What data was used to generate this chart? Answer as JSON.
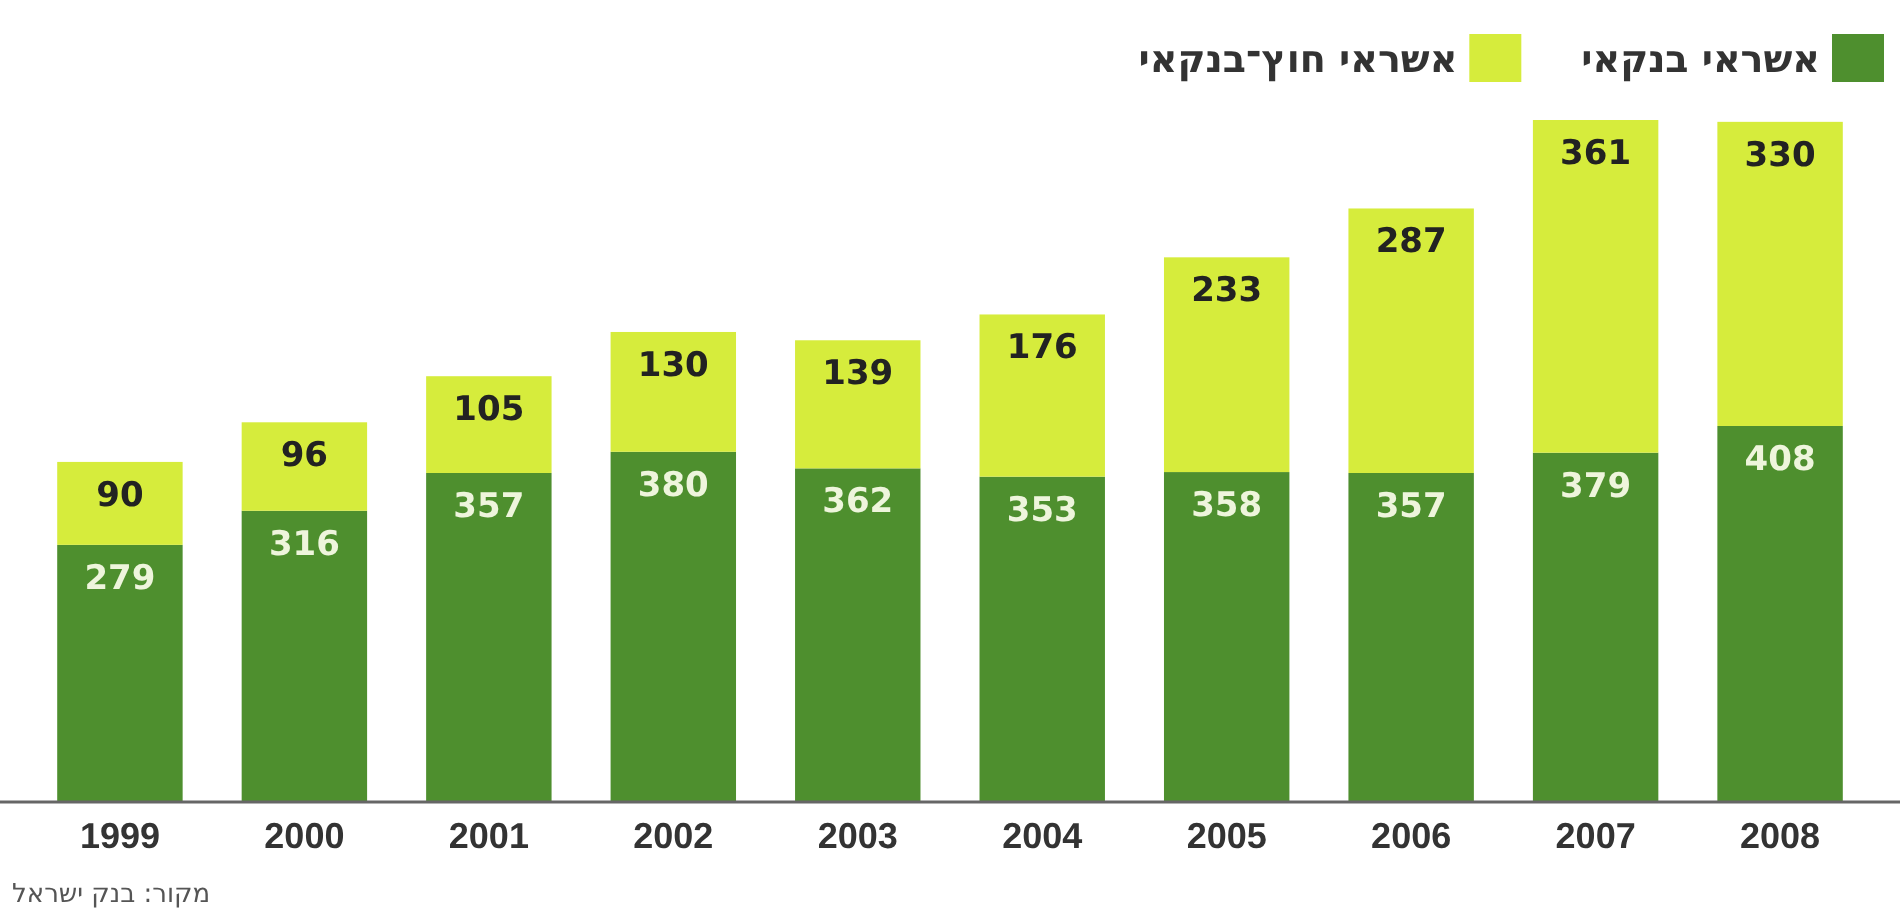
{
  "chart_data": {
    "type": "bar",
    "stacked": true,
    "categories": [
      "1999",
      "2000",
      "2001",
      "2002",
      "2003",
      "2004",
      "2005",
      "2006",
      "2007",
      "2008"
    ],
    "series": [
      {
        "name": "אשראי בנקאי",
        "color": "#4e8f2e",
        "values": [
          279,
          316,
          357,
          380,
          362,
          353,
          358,
          357,
          379,
          408
        ]
      },
      {
        "name": "אשראי חוץ־בנקאי",
        "color": "#d6ec3c",
        "values": [
          90,
          96,
          105,
          130,
          139,
          176,
          233,
          287,
          361,
          330
        ]
      }
    ],
    "data_labels": true,
    "legend": "top right",
    "grid": false,
    "annotations": [
      "מקור: בנק ישראל"
    ]
  }
}
